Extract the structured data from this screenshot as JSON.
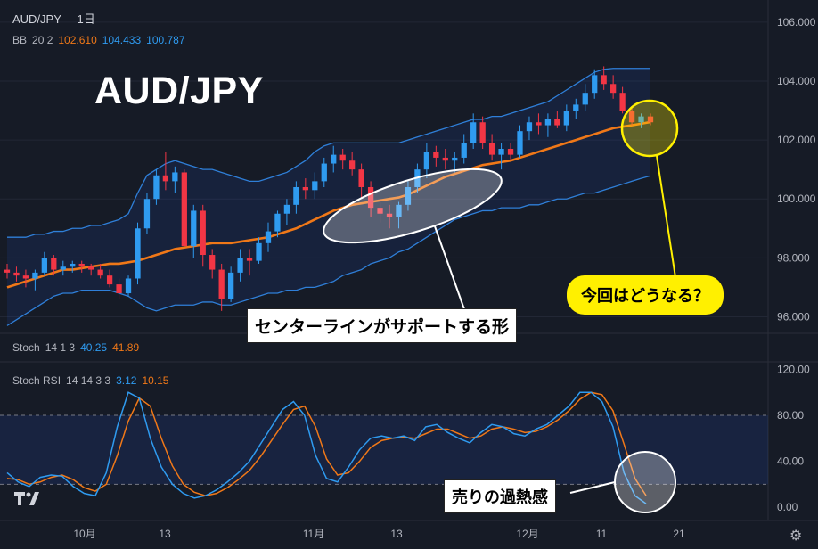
{
  "symbol": "AUD/JPY",
  "interval": "1日",
  "big_title": "AUD/JPY",
  "bb_legend": {
    "name": "BB",
    "params": "20 2",
    "basis": "102.610",
    "upper": "104.433",
    "lower": "100.787"
  },
  "stoch_legend": {
    "name": "Stoch",
    "params": "14 1 3",
    "k": "40.25",
    "d": "41.89"
  },
  "stochrsi_legend": {
    "name": "Stoch RSI",
    "params": "14 14 3 3",
    "k": "3.12",
    "d": "10.15"
  },
  "annotation_center": "センターラインがサポートする形",
  "annotation_now": "今回はどうなる？",
  "annotation_oversold": "売りの過熱感",
  "colors": {
    "up": "#2f9bf0",
    "down": "#f23645",
    "bb_basis": "#f07818",
    "bb_band": "#2f7fd8",
    "highlight": "#fff000"
  },
  "x_axis_labels": [
    "10月",
    "13",
    "11月",
    "13",
    "12月",
    "11",
    "21"
  ],
  "chart_data": [
    {
      "type": "candlestick",
      "title": "AUD/JPY",
      "ylim": [
        95.5,
        106.6
      ],
      "yticks": [
        "106.000",
        "104.000",
        "102.000",
        "100.000",
        "98.000",
        "96.000"
      ],
      "ytick_values": [
        106,
        104,
        102,
        100,
        98,
        96
      ],
      "ohlc": [
        [
          97.6,
          97.8,
          97.3,
          97.5
        ],
        [
          97.5,
          97.7,
          97.2,
          97.4
        ],
        [
          97.4,
          97.6,
          97.0,
          97.3
        ],
        [
          97.3,
          97.6,
          96.9,
          97.5
        ],
        [
          97.5,
          98.2,
          97.4,
          98.0
        ],
        [
          98.0,
          98.1,
          97.4,
          97.6
        ],
        [
          97.6,
          97.9,
          97.4,
          97.7
        ],
        [
          97.7,
          97.9,
          97.5,
          97.8
        ],
        [
          97.8,
          97.9,
          97.5,
          97.7
        ],
        [
          97.7,
          97.8,
          97.4,
          97.6
        ],
        [
          97.6,
          97.8,
          97.3,
          97.4
        ],
        [
          97.4,
          97.6,
          97.0,
          97.1
        ],
        [
          97.1,
          97.3,
          96.6,
          96.8
        ],
        [
          96.8,
          97.4,
          96.7,
          97.3
        ],
        [
          97.3,
          99.2,
          97.1,
          99.0
        ],
        [
          99.0,
          100.2,
          98.8,
          100.0
        ],
        [
          100.0,
          101.0,
          99.8,
          100.8
        ],
        [
          100.8,
          101.6,
          100.3,
          100.6
        ],
        [
          100.6,
          101.1,
          100.2,
          100.9
        ],
        [
          100.9,
          101.0,
          98.4,
          98.4
        ],
        [
          98.4,
          99.8,
          98.0,
          99.6
        ],
        [
          99.6,
          99.8,
          97.7,
          98.1
        ],
        [
          98.1,
          98.3,
          97.3,
          97.6
        ],
        [
          97.6,
          97.8,
          96.2,
          96.6
        ],
        [
          96.6,
          97.7,
          96.5,
          97.5
        ],
        [
          97.5,
          98.3,
          97.2,
          98.0
        ],
        [
          98.0,
          98.3,
          97.4,
          97.9
        ],
        [
          97.9,
          98.7,
          97.8,
          98.5
        ],
        [
          98.5,
          99.2,
          98.2,
          98.9
        ],
        [
          98.9,
          99.6,
          98.7,
          99.5
        ],
        [
          99.5,
          100.0,
          99.1,
          99.8
        ],
        [
          99.8,
          100.6,
          99.5,
          100.4
        ],
        [
          100.4,
          100.7,
          100.0,
          100.3
        ],
        [
          100.3,
          100.9,
          100.0,
          100.6
        ],
        [
          100.6,
          101.4,
          100.4,
          101.2
        ],
        [
          101.2,
          101.8,
          100.9,
          101.5
        ],
        [
          101.5,
          101.7,
          101.0,
          101.3
        ],
        [
          101.3,
          101.6,
          100.8,
          101.0
        ],
        [
          101.0,
          101.2,
          100.0,
          100.4
        ],
        [
          100.4,
          100.6,
          99.4,
          99.7
        ],
        [
          99.7,
          100.0,
          99.2,
          99.5
        ],
        [
          99.5,
          99.8,
          99.0,
          99.4
        ],
        [
          99.4,
          99.9,
          99.0,
          99.8
        ],
        [
          99.8,
          100.6,
          99.6,
          100.4
        ],
        [
          100.4,
          101.2,
          100.2,
          101.0
        ],
        [
          101.0,
          101.9,
          100.7,
          101.6
        ],
        [
          101.6,
          101.8,
          101.1,
          101.4
        ],
        [
          101.4,
          101.7,
          101.0,
          101.3
        ],
        [
          101.3,
          101.6,
          100.9,
          101.4
        ],
        [
          101.4,
          102.2,
          101.2,
          101.9
        ],
        [
          101.9,
          102.9,
          101.7,
          102.6
        ],
        [
          102.6,
          102.8,
          101.7,
          101.9
        ],
        [
          101.9,
          102.2,
          101.3,
          101.5
        ],
        [
          101.5,
          101.9,
          101.0,
          101.7
        ],
        [
          101.7,
          101.9,
          101.3,
          101.5
        ],
        [
          101.5,
          102.5,
          101.4,
          102.3
        ],
        [
          102.3,
          102.8,
          102.0,
          102.6
        ],
        [
          102.6,
          102.9,
          102.2,
          102.5
        ],
        [
          102.5,
          102.9,
          102.1,
          102.7
        ],
        [
          102.7,
          103.0,
          102.4,
          102.5
        ],
        [
          102.5,
          103.2,
          102.3,
          103.0
        ],
        [
          103.0,
          103.4,
          102.7,
          103.2
        ],
        [
          103.2,
          103.9,
          103.0,
          103.6
        ],
        [
          103.6,
          104.4,
          103.4,
          104.2
        ],
        [
          104.2,
          104.5,
          103.7,
          103.9
        ],
        [
          103.9,
          104.2,
          103.4,
          103.6
        ],
        [
          103.6,
          103.8,
          102.9,
          103.0
        ],
        [
          103.0,
          103.1,
          102.5,
          102.6
        ],
        [
          102.6,
          102.9,
          102.4,
          102.8
        ],
        [
          102.8,
          102.9,
          102.5,
          102.6
        ]
      ],
      "series": [
        {
          "name": "BB basis",
          "values": [
            97.0,
            97.1,
            97.2,
            97.3,
            97.4,
            97.5,
            97.6,
            97.6,
            97.65,
            97.7,
            97.75,
            97.8,
            97.8,
            97.85,
            97.9,
            98.0,
            98.1,
            98.2,
            98.3,
            98.35,
            98.4,
            98.45,
            98.5,
            98.5,
            98.5,
            98.55,
            98.6,
            98.65,
            98.7,
            98.8,
            98.9,
            99.0,
            99.15,
            99.3,
            99.45,
            99.6,
            99.7,
            99.8,
            99.85,
            99.9,
            99.95,
            100.0,
            100.05,
            100.15,
            100.3,
            100.45,
            100.6,
            100.75,
            100.85,
            100.95,
            101.05,
            101.15,
            101.2,
            101.25,
            101.3,
            101.4,
            101.5,
            101.6,
            101.7,
            101.8,
            101.9,
            102.0,
            102.1,
            102.2,
            102.3,
            102.4,
            102.45,
            102.5,
            102.55,
            102.61
          ]
        },
        {
          "name": "BB upper",
          "values": [
            98.7,
            98.7,
            98.7,
            98.8,
            98.8,
            98.9,
            98.9,
            99.0,
            99.0,
            99.1,
            99.1,
            99.2,
            99.3,
            99.5,
            100.2,
            100.8,
            101.0,
            101.2,
            101.3,
            101.2,
            101.1,
            101.0,
            101.0,
            100.9,
            100.8,
            100.7,
            100.6,
            100.6,
            100.7,
            100.8,
            100.9,
            101.1,
            101.3,
            101.6,
            101.8,
            101.9,
            101.9,
            101.9,
            101.9,
            101.9,
            101.9,
            101.9,
            101.9,
            102.0,
            102.1,
            102.2,
            102.3,
            102.4,
            102.5,
            102.6,
            102.7,
            102.7,
            102.8,
            102.8,
            102.9,
            103.0,
            103.1,
            103.2,
            103.3,
            103.5,
            103.7,
            103.9,
            104.1,
            104.3,
            104.4,
            104.43,
            104.43,
            104.43,
            104.43,
            104.43
          ]
        },
        {
          "name": "BB lower",
          "values": [
            95.7,
            95.9,
            96.1,
            96.3,
            96.5,
            96.7,
            96.8,
            96.8,
            96.9,
            96.9,
            96.9,
            96.9,
            96.8,
            96.7,
            96.5,
            96.3,
            96.2,
            96.3,
            96.4,
            96.4,
            96.4,
            96.5,
            96.5,
            96.4,
            96.4,
            96.5,
            96.6,
            96.7,
            96.8,
            96.8,
            96.9,
            96.9,
            97.0,
            97.0,
            97.1,
            97.2,
            97.4,
            97.5,
            97.6,
            97.8,
            97.9,
            98.0,
            98.2,
            98.3,
            98.5,
            98.7,
            98.9,
            99.1,
            99.3,
            99.4,
            99.5,
            99.6,
            99.6,
            99.7,
            99.7,
            99.7,
            99.8,
            99.8,
            99.9,
            100.0,
            100.0,
            100.1,
            100.2,
            100.2,
            100.3,
            100.4,
            100.5,
            100.6,
            100.7,
            100.787
          ]
        }
      ]
    },
    {
      "type": "line",
      "title": "Stoch RSI",
      "ylim": [
        -10,
        125
      ],
      "yticks": [
        "120.00",
        "80.00",
        "40.00",
        "0.00"
      ],
      "ytick_values": [
        120,
        80,
        40,
        0
      ],
      "band": [
        20,
        80
      ],
      "series": [
        {
          "name": "K",
          "values": [
            30,
            22,
            18,
            26,
            28,
            27,
            18,
            12,
            10,
            30,
            70,
            100,
            95,
            60,
            35,
            20,
            12,
            8,
            10,
            15,
            22,
            30,
            40,
            55,
            70,
            85,
            92,
            80,
            45,
            25,
            22,
            35,
            50,
            60,
            62,
            60,
            62,
            58,
            70,
            72,
            65,
            60,
            56,
            65,
            72,
            70,
            64,
            62,
            68,
            72,
            80,
            88,
            100,
            100,
            92,
            70,
            30,
            10,
            3.12
          ]
        },
        {
          "name": "D",
          "values": [
            25,
            24,
            20,
            22,
            26,
            28,
            24,
            17,
            14,
            20,
            45,
            75,
            95,
            88,
            60,
            36,
            20,
            13,
            10,
            12,
            17,
            24,
            32,
            44,
            58,
            72,
            85,
            88,
            70,
            42,
            28,
            30,
            40,
            52,
            58,
            60,
            61,
            60,
            64,
            68,
            68,
            64,
            60,
            62,
            68,
            70,
            68,
            65,
            66,
            70,
            76,
            84,
            94,
            100,
            98,
            84,
            55,
            25,
            10.15
          ]
        }
      ]
    }
  ]
}
